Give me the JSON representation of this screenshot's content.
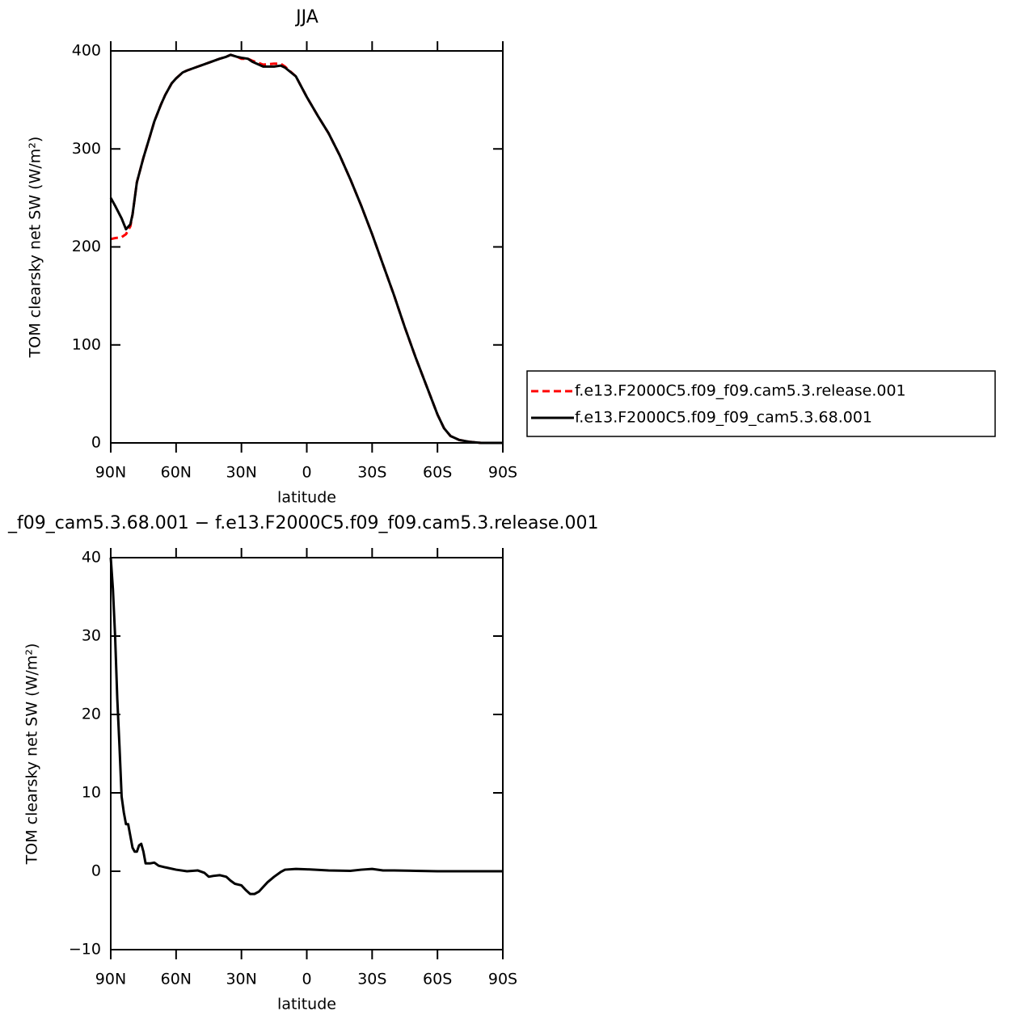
{
  "chart_data": [
    {
      "type": "line",
      "title": "JJA",
      "xlabel": "latitude",
      "ylabel": "TOM clearsky net SW (W/m²)",
      "x": [
        90,
        88,
        85,
        83,
        81,
        80,
        78,
        75,
        72,
        70,
        67,
        65,
        62,
        60,
        57,
        55,
        50,
        45,
        40,
        37,
        35,
        32,
        30,
        27,
        25,
        20,
        15,
        12,
        10,
        5,
        0,
        -5,
        -10,
        -15,
        -20,
        -25,
        -30,
        -35,
        -40,
        -45,
        -50,
        -55,
        -60,
        -63,
        -66,
        -70,
        -75,
        -80,
        -85,
        -90
      ],
      "series": [
        {
          "name": "f.e13.F2000C5.f09_f09.cam5.3.release.001",
          "color": "#ff0000",
          "linestyle": "dashed",
          "values": [
            208,
            209,
            210,
            213,
            221,
            233,
            266,
            291,
            313,
            328,
            345,
            355,
            367,
            372,
            378,
            380,
            384,
            388,
            392,
            394,
            396,
            394,
            392,
            392,
            390,
            386,
            387,
            387,
            384,
            374,
            353,
            334,
            316,
            294,
            269,
            242,
            213,
            182,
            151,
            118,
            87,
            58,
            29,
            15,
            7,
            3,
            1,
            0,
            0,
            0
          ]
        },
        {
          "name": "f.e13.F2000C5.f09_f09_cam5.3.68.001",
          "color": "#000000",
          "linestyle": "solid",
          "values": [
            250,
            242,
            229,
            218,
            223,
            233,
            266,
            291,
            313,
            328,
            345,
            355,
            367,
            372,
            378,
            380,
            384,
            388,
            392,
            394,
            396,
            394,
            393,
            392,
            389,
            384,
            384,
            385,
            383,
            374,
            353,
            334,
            316,
            294,
            269,
            242,
            213,
            182,
            151,
            118,
            87,
            58,
            29,
            15,
            7,
            3,
            1,
            0,
            0,
            0
          ]
        }
      ],
      "xlim": [
        90,
        -90
      ],
      "xticks": [
        {
          "value": 90,
          "label": "90N"
        },
        {
          "value": 60,
          "label": "60N"
        },
        {
          "value": 30,
          "label": "30N"
        },
        0,
        {
          "value": -30,
          "label": "30S"
        },
        {
          "value": -60,
          "label": "60S"
        },
        {
          "value": -90,
          "label": "90S"
        }
      ],
      "ylim": [
        0,
        400
      ],
      "yticks": [
        0,
        100,
        200,
        300,
        400
      ],
      "legend": "right"
    },
    {
      "type": "line",
      "title": "_f09_cam5.3.68.001 − f.e13.F2000C5.f09_f09.cam5.3.release.001",
      "xlabel": "latitude",
      "ylabel": "TOM clearsky net SW (W/m²)",
      "x": [
        90,
        89,
        88,
        87,
        86,
        85,
        84,
        83,
        82,
        81,
        80,
        79,
        78,
        77,
        76,
        75,
        74,
        72,
        70,
        68,
        65,
        60,
        55,
        50,
        47,
        45,
        43,
        40,
        37,
        35,
        33,
        30,
        28,
        26,
        24,
        22,
        20,
        18,
        15,
        12,
        10,
        5,
        0,
        -10,
        -20,
        -25,
        -30,
        -35,
        -40,
        -50,
        -60,
        -70,
        -80,
        -90
      ],
      "series": [
        {
          "color": "#000000",
          "linestyle": "solid",
          "values": [
            40,
            36,
            30,
            22,
            16,
            9.5,
            7.5,
            6,
            6,
            4.5,
            3,
            2.5,
            2.5,
            3.3,
            3.5,
            2.5,
            1,
            1,
            1.1,
            0.7,
            0.5,
            0.2,
            0,
            0.1,
            -0.2,
            -0.7,
            -0.6,
            -0.5,
            -0.7,
            -1.2,
            -1.6,
            -1.8,
            -2.4,
            -2.9,
            -2.9,
            -2.6,
            -2,
            -1.4,
            -0.7,
            -0.1,
            0.2,
            0.3,
            0.25,
            0.1,
            0.05,
            0.2,
            0.3,
            0.1,
            0.1,
            0.05,
            0,
            0,
            0,
            0
          ]
        }
      ],
      "xlim": [
        90,
        -90
      ],
      "xticks": [
        {
          "value": 90,
          "label": "90N"
        },
        {
          "value": 60,
          "label": "60N"
        },
        {
          "value": 30,
          "label": "30N"
        },
        0,
        {
          "value": -30,
          "label": "30S"
        },
        {
          "value": -60,
          "label": "60S"
        },
        {
          "value": -90,
          "label": "90S"
        }
      ],
      "ylim": [
        -10,
        40
      ],
      "yticks": [
        {
          "value": -10,
          "label": "−10"
        },
        0,
        10,
        20,
        30,
        40
      ]
    }
  ]
}
